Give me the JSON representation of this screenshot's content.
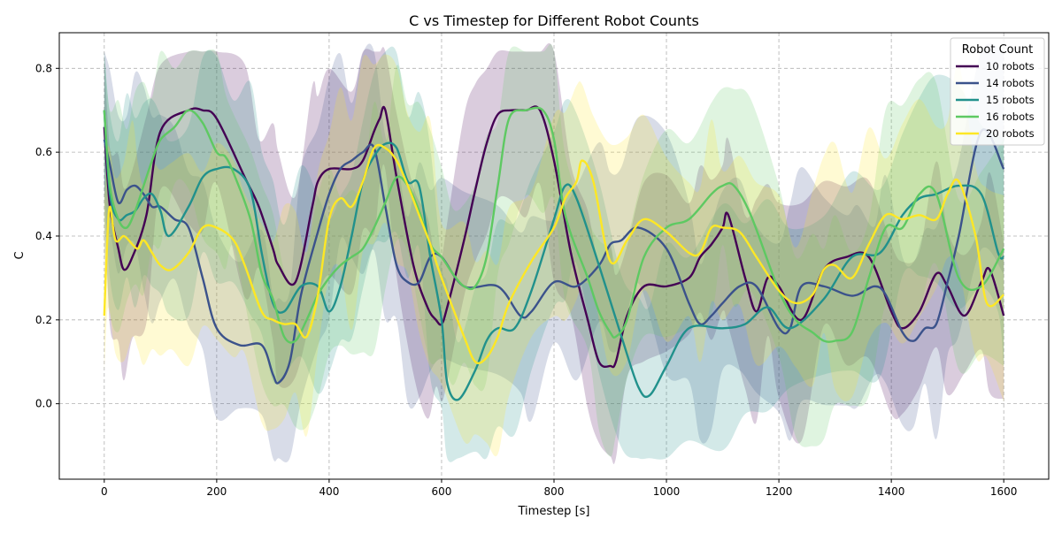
{
  "chart_data": {
    "type": "line",
    "title": "C vs Timestep for Different Robot Counts",
    "xlabel": "Timestep [s]",
    "ylabel": "C",
    "xlim": [
      -80,
      1680
    ],
    "ylim": [
      -0.18,
      0.885
    ],
    "xticks": [
      0,
      200,
      400,
      600,
      800,
      1000,
      1200,
      1400,
      1600
    ],
    "yticks": [
      0.0,
      0.2,
      0.4,
      0.6,
      0.8
    ],
    "grid": true,
    "legend_title": "Robot Count",
    "legend_position": "top-right",
    "series": [
      {
        "name": "10 robots",
        "color": "#440154",
        "x": [
          0,
          10,
          25,
          35,
          50,
          75,
          100,
          150,
          175,
          200,
          250,
          275,
          300,
          310,
          340,
          370,
          380,
          400,
          440,
          460,
          480,
          490,
          500,
          520,
          550,
          575,
          590,
          600,
          610,
          640,
          660,
          680,
          700,
          725,
          750,
          775,
          800,
          830,
          860,
          880,
          900,
          910,
          930,
          960,
          1000,
          1040,
          1060,
          1080,
          1100,
          1110,
          1140,
          1160,
          1180,
          1200,
          1240,
          1280,
          1320,
          1360,
          1400,
          1420,
          1450,
          1480,
          1500,
          1530,
          1560,
          1575,
          1600
        ],
        "y": [
          0.66,
          0.47,
          0.37,
          0.32,
          0.35,
          0.45,
          0.65,
          0.7,
          0.7,
          0.68,
          0.54,
          0.47,
          0.37,
          0.33,
          0.29,
          0.47,
          0.53,
          0.56,
          0.56,
          0.58,
          0.65,
          0.68,
          0.7,
          0.54,
          0.33,
          0.23,
          0.2,
          0.19,
          0.23,
          0.39,
          0.51,
          0.62,
          0.69,
          0.7,
          0.7,
          0.7,
          0.58,
          0.36,
          0.2,
          0.1,
          0.09,
          0.1,
          0.21,
          0.28,
          0.28,
          0.3,
          0.35,
          0.38,
          0.42,
          0.45,
          0.3,
          0.22,
          0.3,
          0.28,
          0.2,
          0.32,
          0.35,
          0.35,
          0.22,
          0.18,
          0.22,
          0.31,
          0.28,
          0.21,
          0.29,
          0.32,
          0.21
        ]
      },
      {
        "name": "14 robots",
        "color": "#3b528b",
        "x": [
          0,
          10,
          25,
          40,
          55,
          70,
          85,
          100,
          125,
          150,
          175,
          200,
          240,
          280,
          300,
          310,
          330,
          350,
          380,
          400,
          420,
          440,
          460,
          480,
          500,
          520,
          540,
          560,
          580,
          600,
          640,
          700,
          740,
          760,
          800,
          840,
          880,
          900,
          920,
          950,
          1000,
          1040,
          1060,
          1080,
          1100,
          1130,
          1160,
          1200,
          1220,
          1240,
          1280,
          1320,
          1340,
          1370,
          1390,
          1420,
          1440,
          1460,
          1480,
          1500,
          1520,
          1560,
          1600
        ],
        "y": [
          0.63,
          0.57,
          0.48,
          0.51,
          0.52,
          0.5,
          0.47,
          0.47,
          0.44,
          0.42,
          0.3,
          0.18,
          0.14,
          0.14,
          0.07,
          0.05,
          0.1,
          0.26,
          0.41,
          0.5,
          0.56,
          0.58,
          0.6,
          0.61,
          0.47,
          0.33,
          0.29,
          0.29,
          0.35,
          0.35,
          0.28,
          0.28,
          0.21,
          0.22,
          0.29,
          0.28,
          0.33,
          0.38,
          0.39,
          0.42,
          0.37,
          0.24,
          0.19,
          0.21,
          0.24,
          0.28,
          0.28,
          0.18,
          0.18,
          0.28,
          0.28,
          0.26,
          0.26,
          0.28,
          0.26,
          0.17,
          0.15,
          0.18,
          0.19,
          0.29,
          0.4,
          0.65,
          0.56
        ]
      },
      {
        "name": "15 robots",
        "color": "#21918c",
        "x": [
          0,
          10,
          25,
          40,
          55,
          70,
          85,
          100,
          115,
          150,
          175,
          200,
          230,
          260,
          280,
          300,
          320,
          350,
          380,
          400,
          420,
          440,
          460,
          480,
          500,
          520,
          540,
          560,
          580,
          600,
          610,
          630,
          660,
          680,
          700,
          730,
          760,
          800,
          820,
          840,
          880,
          920,
          950,
          970,
          1000,
          1040,
          1100,
          1140,
          1180,
          1220,
          1280,
          1330,
          1380,
          1420,
          1450,
          1480,
          1520,
          1560,
          1590,
          1600
        ],
        "y": [
          0.7,
          0.5,
          0.44,
          0.45,
          0.46,
          0.49,
          0.5,
          0.46,
          0.4,
          0.47,
          0.54,
          0.56,
          0.56,
          0.51,
          0.36,
          0.24,
          0.22,
          0.28,
          0.28,
          0.22,
          0.28,
          0.4,
          0.53,
          0.59,
          0.62,
          0.61,
          0.53,
          0.52,
          0.35,
          0.2,
          0.05,
          0.01,
          0.08,
          0.15,
          0.18,
          0.18,
          0.27,
          0.44,
          0.52,
          0.49,
          0.33,
          0.16,
          0.04,
          0.02,
          0.09,
          0.18,
          0.18,
          0.19,
          0.23,
          0.18,
          0.25,
          0.35,
          0.36,
          0.45,
          0.49,
          0.5,
          0.52,
          0.5,
          0.36,
          0.35
        ]
      },
      {
        "name": "16 robots",
        "color": "#5ec962",
        "x": [
          0,
          10,
          25,
          40,
          55,
          70,
          85,
          100,
          125,
          150,
          175,
          200,
          215,
          230,
          260,
          280,
          300,
          320,
          340,
          360,
          380,
          400,
          420,
          440,
          460,
          480,
          500,
          520,
          540,
          560,
          580,
          600,
          620,
          640,
          660,
          680,
          700,
          720,
          750,
          780,
          800,
          820,
          860,
          880,
          900,
          910,
          930,
          960,
          1000,
          1040,
          1080,
          1100,
          1120,
          1150,
          1200,
          1230,
          1260,
          1280,
          1300,
          1330,
          1360,
          1390,
          1420,
          1450,
          1480,
          1520,
          1560,
          1600
        ],
        "y": [
          0.7,
          0.52,
          0.44,
          0.42,
          0.46,
          0.52,
          0.58,
          0.63,
          0.66,
          0.7,
          0.67,
          0.6,
          0.59,
          0.55,
          0.44,
          0.31,
          0.25,
          0.16,
          0.15,
          0.2,
          0.26,
          0.3,
          0.33,
          0.35,
          0.37,
          0.42,
          0.48,
          0.54,
          0.52,
          0.46,
          0.38,
          0.35,
          0.31,
          0.28,
          0.28,
          0.35,
          0.52,
          0.68,
          0.7,
          0.7,
          0.63,
          0.45,
          0.3,
          0.22,
          0.17,
          0.16,
          0.2,
          0.35,
          0.42,
          0.44,
          0.5,
          0.52,
          0.52,
          0.45,
          0.27,
          0.2,
          0.17,
          0.15,
          0.15,
          0.17,
          0.3,
          0.42,
          0.42,
          0.5,
          0.5,
          0.3,
          0.28,
          0.37
        ]
      },
      {
        "name": "20 robots",
        "color": "#fde725",
        "x": [
          0,
          5,
          10,
          20,
          35,
          50,
          60,
          70,
          85,
          100,
          120,
          150,
          175,
          200,
          230,
          250,
          280,
          300,
          320,
          340,
          360,
          380,
          400,
          420,
          440,
          460,
          480,
          500,
          520,
          540,
          560,
          580,
          600,
          640,
          660,
          680,
          700,
          720,
          760,
          800,
          820,
          840,
          850,
          870,
          900,
          930,
          960,
          1000,
          1040,
          1060,
          1080,
          1100,
          1130,
          1160,
          1200,
          1230,
          1260,
          1280,
          1300,
          1330,
          1360,
          1390,
          1420,
          1450,
          1480,
          1500,
          1520,
          1550,
          1570,
          1600
        ],
        "y": [
          0.21,
          0.38,
          0.47,
          0.39,
          0.4,
          0.38,
          0.37,
          0.39,
          0.36,
          0.33,
          0.32,
          0.36,
          0.42,
          0.42,
          0.39,
          0.33,
          0.22,
          0.2,
          0.19,
          0.19,
          0.16,
          0.26,
          0.44,
          0.49,
          0.47,
          0.53,
          0.61,
          0.61,
          0.58,
          0.52,
          0.45,
          0.38,
          0.3,
          0.16,
          0.1,
          0.11,
          0.16,
          0.24,
          0.34,
          0.42,
          0.49,
          0.53,
          0.58,
          0.53,
          0.34,
          0.39,
          0.44,
          0.41,
          0.36,
          0.36,
          0.42,
          0.42,
          0.41,
          0.35,
          0.27,
          0.24,
          0.26,
          0.32,
          0.33,
          0.3,
          0.38,
          0.45,
          0.44,
          0.45,
          0.44,
          0.5,
          0.53,
          0.4,
          0.24,
          0.26
        ]
      }
    ]
  }
}
